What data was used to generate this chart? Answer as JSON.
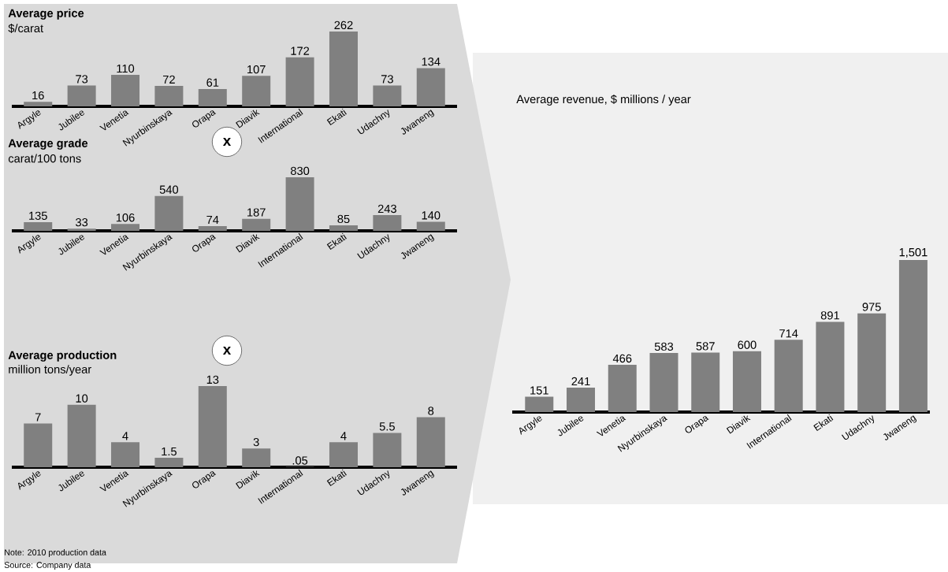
{
  "chart_data": [
    {
      "type": "bar",
      "title": "Average price",
      "subtitle": "$/carat",
      "categories": [
        "Argyle",
        "Jubilee",
        "Venetia",
        "Nyurbinskaya",
        "Orapa",
        "Diavik",
        "International",
        "Ekati",
        "Udachny",
        "Jwaneng"
      ],
      "values": [
        16,
        73,
        110,
        72,
        61,
        107,
        172,
        262,
        73,
        134
      ],
      "color": "#808080",
      "data_labels": true
    },
    {
      "type": "bar",
      "title": "Average grade",
      "subtitle": "carat/100 tons",
      "annotations": [
        "x"
      ],
      "categories": [
        "Argyle",
        "Jubilee",
        "Venetia",
        "Nyurbinskaya",
        "Orapa",
        "Diavik",
        "International",
        "Ekati",
        "Udachny",
        "Jwaneng"
      ],
      "values": [
        135,
        33,
        106,
        540,
        74,
        187,
        830,
        85,
        243,
        140
      ],
      "color": "#808080",
      "data_labels": true
    },
    {
      "type": "bar",
      "title": "Average production",
      "subtitle": "million tons/year",
      "annotations": [
        "x"
      ],
      "categories": [
        "Argyle",
        "Jubilee",
        "Venetia",
        "Nyurbinskaya",
        "Orapa",
        "Diavik",
        "International",
        "Ekati",
        "Udachny",
        "Jwaneng"
      ],
      "values": [
        7,
        10,
        4,
        1.5,
        13,
        3,
        0.05,
        4,
        5.5,
        8
      ],
      "value_labels": [
        "7",
        "10",
        "4",
        "1.5",
        "13",
        "3",
        ".05",
        "4",
        "5.5",
        "8"
      ],
      "color": "#808080"
    },
    {
      "type": "bar",
      "title": "Average revenue, $ millions / year",
      "annotations": [
        "Note: 2010 production data",
        "Source: Company data"
      ],
      "categories": [
        "Argyle",
        "Jubilee",
        "Venetia",
        "Nyurbinskaya",
        "Orapa",
        "Diavik",
        "International",
        "Ekati",
        "Udachny",
        "Jwaneng"
      ],
      "values": [
        151,
        241,
        466,
        583,
        587,
        600,
        714,
        891,
        975,
        1501
      ],
      "value_labels": [
        "151",
        "241",
        "466",
        "583",
        "587",
        "600",
        "714",
        "891",
        "975",
        "1,501"
      ],
      "color": "#808080"
    }
  ]
}
